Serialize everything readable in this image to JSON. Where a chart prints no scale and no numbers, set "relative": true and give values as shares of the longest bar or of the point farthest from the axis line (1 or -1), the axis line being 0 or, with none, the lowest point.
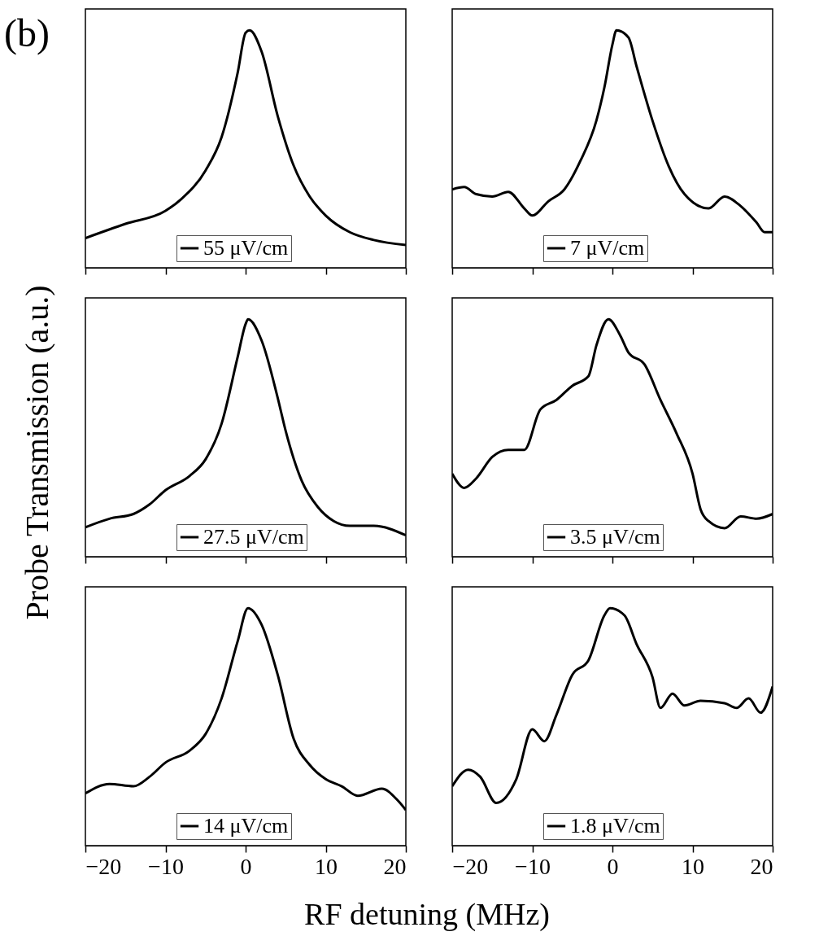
{
  "chart_data": [
    {
      "type": "line",
      "relative": true,
      "xlim": [
        -20,
        20
      ],
      "xticks": [
        -20,
        -10,
        0,
        10,
        20
      ],
      "tick_labels": false,
      "grid": false,
      "legend": "bottom",
      "ylabel": "Probe Transmission (a.u.)",
      "annotations": [
        "(b)"
      ],
      "series": [
        {
          "name": "55 μV/cm",
          "color": "#000000",
          "x": [
            -20,
            -15,
            -10,
            -8,
            -5,
            -3,
            -1,
            0,
            0.5,
            2,
            4,
            6,
            8,
            10,
            13,
            16,
            20
          ],
          "values": [
            0.125,
            0.185,
            0.24,
            0.29,
            0.41,
            0.55,
            0.82,
            0.99,
            1.0,
            0.91,
            0.64,
            0.43,
            0.3,
            0.22,
            0.15,
            0.117,
            0.096
          ]
        }
      ]
    },
    {
      "type": "line",
      "relative": true,
      "xlim": [
        -20,
        20
      ],
      "xticks": [
        -20,
        -10,
        0,
        10,
        20
      ],
      "tick_labels": false,
      "grid": false,
      "legend": "bottom",
      "series": [
        {
          "name": "7 μV/cm",
          "color": "#000000",
          "x": [
            -20,
            -18.5,
            -17,
            -15,
            -13,
            -11,
            -10,
            -8,
            -6,
            -4,
            -2,
            -1,
            0,
            0.5,
            2,
            3,
            5,
            7,
            9,
            12,
            14,
            16,
            18,
            19,
            20
          ],
          "values": [
            0.33,
            0.34,
            0.31,
            0.3,
            0.32,
            0.25,
            0.22,
            0.28,
            0.33,
            0.45,
            0.62,
            0.76,
            0.94,
            1.0,
            0.97,
            0.85,
            0.62,
            0.43,
            0.31,
            0.25,
            0.3,
            0.26,
            0.19,
            0.15,
            0.15
          ]
        }
      ]
    },
    {
      "type": "line",
      "relative": true,
      "xlim": [
        -20,
        20
      ],
      "xticks": [
        -20,
        -10,
        0,
        10,
        20
      ],
      "tick_labels": false,
      "grid": false,
      "legend": "bottom",
      "series": [
        {
          "name": "27.5 μV/cm",
          "color": "#000000",
          "x": [
            -20,
            -17,
            -14,
            -12,
            -10,
            -7,
            -5,
            -3,
            -1,
            0,
            0.3,
            2,
            4,
            5,
            7,
            9,
            11,
            13,
            16,
            20
          ],
          "values": [
            0.124,
            0.16,
            0.18,
            0.22,
            0.28,
            0.34,
            0.41,
            0.56,
            0.84,
            0.98,
            1.0,
            0.91,
            0.67,
            0.53,
            0.32,
            0.21,
            0.15,
            0.13,
            0.13,
            0.09
          ]
        }
      ]
    },
    {
      "type": "line",
      "relative": true,
      "xlim": [
        -20,
        20
      ],
      "xticks": [
        -20,
        -10,
        0,
        10,
        20
      ],
      "tick_labels": false,
      "grid": false,
      "legend": "bottom",
      "series": [
        {
          "name": "3.5 μV/cm",
          "color": "#000000",
          "x": [
            -20,
            -18.5,
            -17,
            -15,
            -13,
            -11,
            -9,
            -7,
            -5,
            -3,
            -2,
            -0.5,
            1,
            2,
            4,
            6,
            8,
            10,
            11,
            12,
            14,
            16,
            18,
            20
          ],
          "values": [
            0.35,
            0.29,
            0.33,
            0.42,
            0.45,
            0.45,
            0.62,
            0.66,
            0.72,
            0.76,
            0.89,
            1.0,
            0.93,
            0.86,
            0.81,
            0.66,
            0.52,
            0.35,
            0.2,
            0.15,
            0.12,
            0.17,
            0.16,
            0.18
          ]
        }
      ]
    },
    {
      "type": "line",
      "relative": true,
      "xlim": [
        -20,
        20
      ],
      "xticks": [
        -20,
        -10,
        0,
        10,
        20
      ],
      "tick_labels": "x",
      "grid": false,
      "legend": "bottom",
      "xlabel": "RF detuning (MHz)",
      "series": [
        {
          "name": "14 μV/cm",
          "color": "#000000",
          "x": [
            -20,
            -17,
            -14,
            -12,
            -10,
            -7,
            -5,
            -3,
            -1,
            0.3,
            2,
            4,
            6,
            8,
            10,
            12,
            14,
            17,
            19,
            20
          ],
          "values": [
            0.22,
            0.26,
            0.25,
            0.29,
            0.35,
            0.4,
            0.47,
            0.62,
            0.86,
            1.0,
            0.93,
            0.72,
            0.45,
            0.34,
            0.28,
            0.25,
            0.21,
            0.24,
            0.19,
            0.15
          ]
        }
      ]
    },
    {
      "type": "line",
      "relative": true,
      "xlim": [
        -20,
        20
      ],
      "xticks": [
        -20,
        -10,
        0,
        10,
        20
      ],
      "tick_labels": "x",
      "grid": false,
      "legend": "bottom",
      "series": [
        {
          "name": "1.8 μV/cm",
          "color": "#000000",
          "x": [
            -20,
            -18,
            -16.5,
            -14.5,
            -12,
            -10,
            -8.5,
            -7,
            -5,
            -3,
            -1,
            -0.3,
            1.5,
            3,
            5,
            6,
            7.5,
            9,
            11,
            14,
            15.5,
            17,
            18.5,
            20
          ],
          "values": [
            0.25,
            0.32,
            0.29,
            0.18,
            0.28,
            0.49,
            0.44,
            0.55,
            0.72,
            0.78,
            0.97,
            1.0,
            0.97,
            0.85,
            0.71,
            0.58,
            0.64,
            0.59,
            0.61,
            0.6,
            0.58,
            0.62,
            0.56,
            0.67
          ]
        }
      ]
    }
  ]
}
